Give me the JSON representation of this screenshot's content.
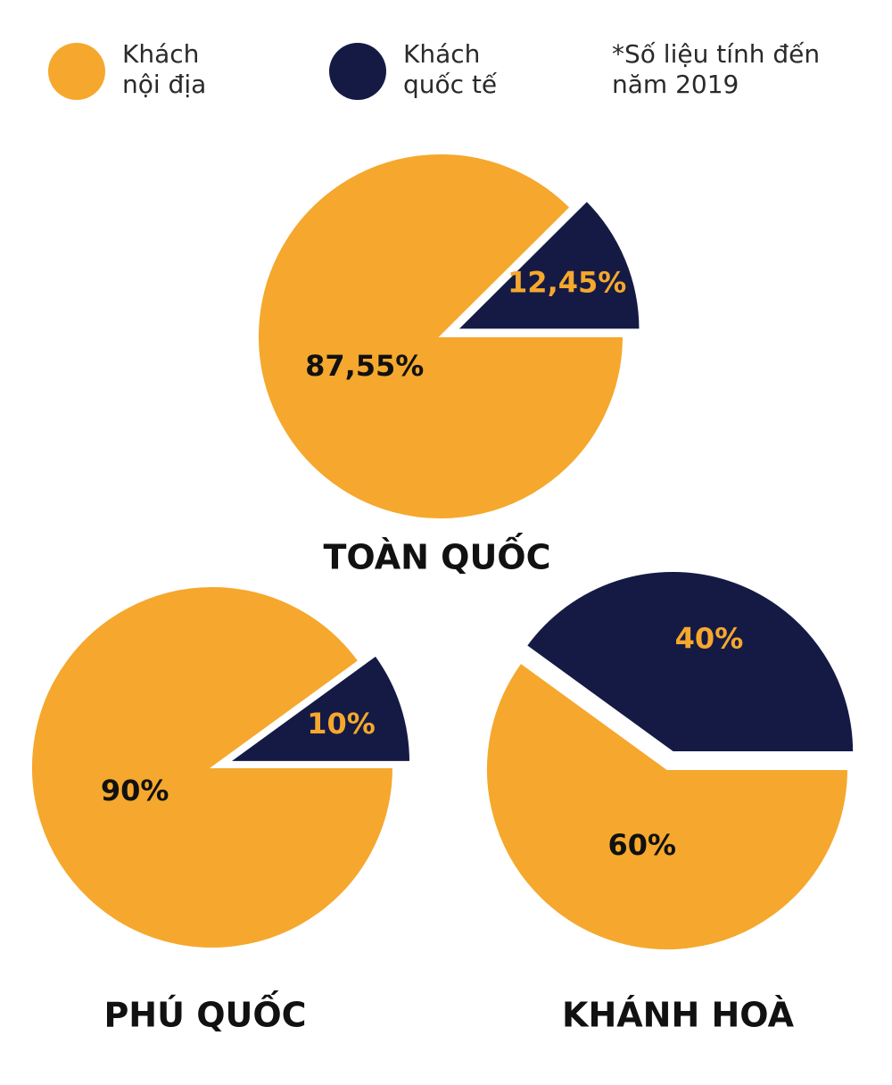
{
  "legend": [
    {
      "name": "Khách nội địa",
      "color": "#f5a82d"
    },
    {
      "name": "Khách quốc tế",
      "color": "#151a45"
    }
  ],
  "note": "*Số liệu tính đến năm 2019",
  "chart_data": [
    {
      "type": "pie",
      "title": "TOÀN QUỐC",
      "values": [
        87.55,
        12.45
      ],
      "value_labels": [
        "87,55%",
        "12,45%"
      ]
    },
    {
      "type": "pie",
      "title": "PHÚ QUỐC",
      "values": [
        90,
        10
      ],
      "value_labels": [
        "90%",
        "10%"
      ]
    },
    {
      "type": "pie",
      "title": "KHÁNH HOÀ",
      "values": [
        60,
        40
      ],
      "value_labels": [
        "60%",
        "40%"
      ]
    }
  ]
}
